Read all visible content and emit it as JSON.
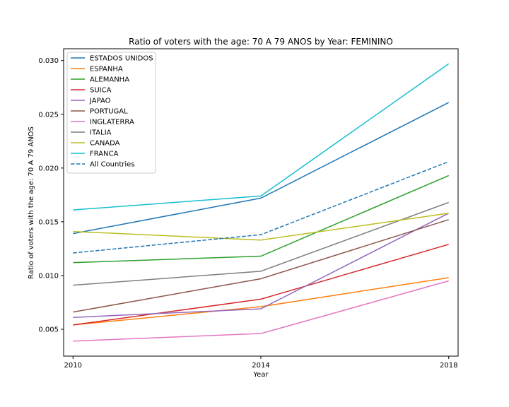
{
  "chart_data": {
    "type": "line",
    "title": "Ratio of voters with the age: 70 A 79 ANOS by Year: FEMININO",
    "xlabel": "Year",
    "ylabel": "Ratio of voters with the age: 70 A 79 ANOS",
    "x": [
      2010,
      2014,
      2018
    ],
    "x_ticks": [
      "2010",
      "2014",
      "2018"
    ],
    "y_ticks": [
      "0.005",
      "0.010",
      "0.015",
      "0.020",
      "0.025",
      "0.030"
    ],
    "xlim": [
      2009.8,
      2018.2
    ],
    "ylim": [
      0.0025,
      0.0311
    ],
    "legend_position": "upper left",
    "series": [
      {
        "name": "ESTADOS UNIDOS",
        "color": "#1f77b4",
        "dashed": false,
        "values": [
          0.0139,
          0.0172,
          0.0261
        ]
      },
      {
        "name": "ESPANHA",
        "color": "#ff7f0e",
        "dashed": false,
        "values": [
          0.0054,
          0.0071,
          0.0098
        ]
      },
      {
        "name": "ALEMANHA",
        "color": "#2ca02c",
        "dashed": false,
        "values": [
          0.0112,
          0.0118,
          0.0193
        ]
      },
      {
        "name": "SUICA",
        "color": "#d62728",
        "dashed": false,
        "values": [
          0.0054,
          0.0078,
          0.0129
        ]
      },
      {
        "name": "JAPAO",
        "color": "#9467bd",
        "dashed": false,
        "values": [
          0.0061,
          0.0069,
          0.0158
        ]
      },
      {
        "name": "PORTUGAL",
        "color": "#8c564b",
        "dashed": false,
        "values": [
          0.0066,
          0.0097,
          0.0152
        ]
      },
      {
        "name": "INGLATERRA",
        "color": "#e377c2",
        "dashed": false,
        "values": [
          0.0039,
          0.0046,
          0.0095
        ]
      },
      {
        "name": "ITALIA",
        "color": "#7f7f7f",
        "dashed": false,
        "values": [
          0.0091,
          0.0104,
          0.0168
        ]
      },
      {
        "name": "CANADA",
        "color": "#bcbd22",
        "dashed": false,
        "values": [
          0.0141,
          0.0133,
          0.0158
        ]
      },
      {
        "name": "FRANCA",
        "color": "#17becf",
        "dashed": false,
        "values": [
          0.0161,
          0.0174,
          0.0297
        ]
      },
      {
        "name": "All Countries",
        "color": "#1f77b4",
        "dashed": true,
        "values": [
          0.0121,
          0.0138,
          0.0206
        ]
      }
    ]
  }
}
